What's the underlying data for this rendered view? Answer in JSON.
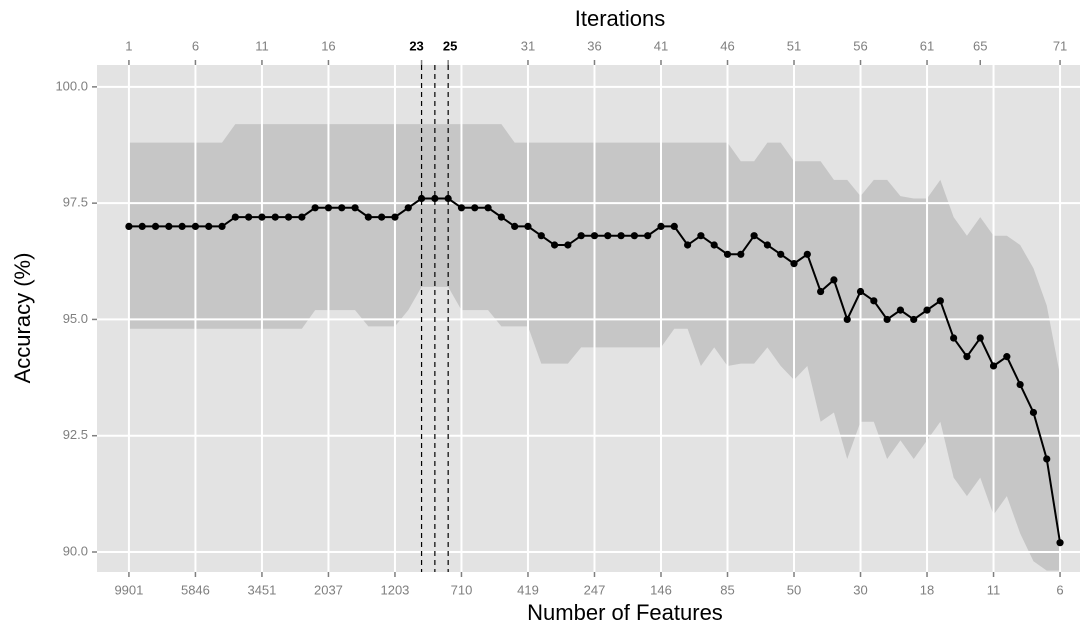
{
  "chart_data": {
    "type": "line",
    "x_title": "Number of Features",
    "x2_title": "Iterations",
    "y_title": "Accuracy (%)",
    "x": [
      1,
      2,
      3,
      4,
      5,
      6,
      7,
      8,
      9,
      10,
      11,
      12,
      13,
      14,
      15,
      16,
      17,
      18,
      19,
      20,
      21,
      22,
      23,
      24,
      25,
      26,
      27,
      28,
      29,
      30,
      31,
      32,
      33,
      34,
      35,
      36,
      37,
      38,
      39,
      40,
      41,
      42,
      43,
      44,
      45,
      46,
      47,
      48,
      49,
      50,
      51,
      52,
      53,
      54,
      55,
      56,
      57,
      58,
      59,
      60,
      61,
      62,
      63,
      64,
      65,
      66,
      67,
      68,
      69,
      70,
      71
    ],
    "values": [
      97.0,
      97.0,
      97.0,
      97.0,
      97.0,
      97.0,
      97.0,
      97.0,
      97.2,
      97.2,
      97.2,
      97.2,
      97.2,
      97.2,
      97.4,
      97.4,
      97.4,
      97.4,
      97.2,
      97.2,
      97.2,
      97.4,
      97.6,
      97.6,
      97.6,
      97.4,
      97.4,
      97.4,
      97.2,
      97.0,
      97.0,
      96.8,
      96.6,
      96.6,
      96.8,
      96.8,
      96.8,
      96.8,
      96.8,
      96.8,
      97.0,
      97.0,
      96.6,
      96.8,
      96.6,
      96.4,
      96.4,
      96.8,
      96.6,
      96.4,
      96.2,
      96.4,
      95.6,
      95.85,
      95.0,
      95.6,
      95.4,
      95.0,
      95.2,
      95.0,
      95.2,
      95.4,
      94.6,
      94.2,
      94.6,
      94.0,
      94.2,
      93.6,
      93.0,
      92.0,
      90.2
    ],
    "band_upper": [
      98.8,
      98.8,
      98.8,
      98.8,
      98.8,
      98.8,
      98.8,
      98.8,
      99.2,
      99.2,
      99.2,
      99.2,
      99.2,
      99.2,
      99.2,
      99.2,
      99.2,
      99.2,
      99.2,
      99.2,
      99.2,
      99.2,
      99.2,
      99.2,
      99.2,
      99.2,
      99.2,
      99.2,
      99.2,
      98.8,
      98.8,
      98.8,
      98.8,
      98.8,
      98.8,
      98.8,
      98.8,
      98.8,
      98.8,
      98.8,
      98.8,
      98.8,
      98.8,
      98.8,
      98.8,
      98.8,
      98.4,
      98.4,
      98.8,
      98.8,
      98.4,
      98.4,
      98.4,
      98.0,
      98.0,
      97.65,
      98.0,
      98.0,
      97.65,
      97.6,
      97.6,
      98.0,
      97.2,
      96.8,
      97.2,
      96.8,
      96.8,
      96.6,
      96.1,
      95.3,
      93.8
    ],
    "band_lower": [
      94.8,
      94.8,
      94.8,
      94.8,
      94.8,
      94.8,
      94.8,
      94.8,
      94.8,
      94.8,
      94.8,
      94.8,
      94.8,
      94.8,
      95.2,
      95.2,
      95.2,
      95.2,
      94.85,
      94.85,
      94.85,
      95.2,
      95.7,
      95.7,
      95.7,
      95.2,
      95.2,
      95.2,
      94.85,
      94.85,
      94.85,
      94.05,
      94.05,
      94.05,
      94.4,
      94.4,
      94.4,
      94.4,
      94.4,
      94.4,
      94.4,
      94.8,
      94.8,
      94.0,
      94.4,
      94.0,
      94.05,
      94.05,
      94.4,
      94.0,
      93.7,
      94.0,
      92.8,
      93.0,
      92.0,
      92.8,
      92.8,
      92.0,
      92.4,
      92.0,
      92.4,
      92.8,
      91.6,
      91.2,
      91.6,
      90.8,
      91.2,
      90.4,
      89.8,
      89.6,
      89.6
    ],
    "color": "#000000",
    "band_color": "#c6c6c6",
    "highlight": [
      23,
      24,
      25
    ],
    "xlim": [
      -1.4,
      72.5
    ],
    "xticks": [
      {
        "value": 1,
        "label": "9901"
      },
      {
        "value": 6,
        "label": "5846"
      },
      {
        "value": 11,
        "label": "3451"
      },
      {
        "value": 16,
        "label": "2037"
      },
      {
        "value": 21,
        "label": "1203"
      },
      {
        "value": 26,
        "label": "710"
      },
      {
        "value": 31,
        "label": "419"
      },
      {
        "value": 36,
        "label": "247"
      },
      {
        "value": 41,
        "label": "146"
      },
      {
        "value": 46,
        "label": "85"
      },
      {
        "value": 51,
        "label": "50"
      },
      {
        "value": 56,
        "label": "30"
      },
      {
        "value": 61,
        "label": "18"
      },
      {
        "value": 66,
        "label": "11"
      },
      {
        "value": 71,
        "label": "6"
      }
    ],
    "x2ticks": [
      1,
      6,
      11,
      16,
      23,
      25,
      31,
      36,
      41,
      46,
      51,
      56,
      61,
      65,
      71
    ],
    "ylim": [
      89.57,
      100.47
    ],
    "yticks": [
      {
        "value": 90,
        "label": "90.0"
      },
      {
        "value": 92.5,
        "label": "92.5"
      },
      {
        "value": 95,
        "label": "95.0"
      },
      {
        "value": 97.5,
        "label": "97.5"
      },
      {
        "value": 100,
        "label": "100.0"
      }
    ],
    "grid": true
  }
}
